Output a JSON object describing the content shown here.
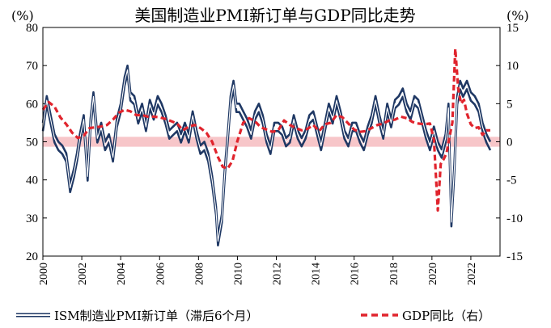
{
  "chart_data": {
    "type": "line",
    "title": "美国制造业PMI新订单与GDP同比走势",
    "left_unit": "(%)",
    "right_unit": "(%)",
    "left_axis": {
      "ylim": [
        20,
        80
      ],
      "ticks": [
        20,
        30,
        40,
        50,
        60,
        70,
        80
      ]
    },
    "right_axis": {
      "ylim": [
        -15,
        15
      ],
      "ticks": [
        -15,
        -10,
        -5,
        0,
        5,
        10,
        15
      ]
    },
    "x_axis": {
      "range": [
        2000,
        2023.5
      ],
      "ticks": [
        "2000",
        "2002",
        "2004",
        "2006",
        "2008",
        "2010",
        "2012",
        "2014",
        "2016",
        "2018",
        "2020",
        "2022"
      ]
    },
    "band": {
      "axis": "left",
      "from": 48.7,
      "to": 51.3,
      "color": "#f7c6c9"
    },
    "colors": {
      "pmi": "#1f3864",
      "gdp": "#e0242d",
      "band": "#f7c6c9"
    },
    "series": [
      {
        "name": "ISM制造业PMI新订单（滞后6个月）",
        "axis": "left",
        "style": "double-line",
        "x": [
          2000.0,
          2000.2,
          2000.4,
          2000.6,
          2000.8,
          2001.0,
          2001.2,
          2001.4,
          2001.6,
          2001.75,
          2001.9,
          2002.1,
          2002.3,
          2002.45,
          2002.6,
          2002.8,
          2003.0,
          2003.2,
          2003.4,
          2003.6,
          2003.8,
          2004.0,
          2004.2,
          2004.35,
          2004.5,
          2004.7,
          2004.9,
          2005.1,
          2005.3,
          2005.5,
          2005.7,
          2005.9,
          2006.1,
          2006.3,
          2006.5,
          2006.7,
          2006.9,
          2007.1,
          2007.3,
          2007.5,
          2007.7,
          2007.9,
          2008.1,
          2008.3,
          2008.5,
          2008.7,
          2008.9,
          2009.0,
          2009.2,
          2009.35,
          2009.5,
          2009.65,
          2009.8,
          2009.95,
          2010.1,
          2010.3,
          2010.5,
          2010.7,
          2010.9,
          2011.1,
          2011.3,
          2011.5,
          2011.7,
          2011.9,
          2012.1,
          2012.3,
          2012.5,
          2012.7,
          2012.9,
          2013.1,
          2013.3,
          2013.5,
          2013.7,
          2013.9,
          2014.1,
          2014.3,
          2014.5,
          2014.7,
          2014.9,
          2015.1,
          2015.3,
          2015.5,
          2015.7,
          2015.9,
          2016.1,
          2016.3,
          2016.5,
          2016.7,
          2016.9,
          2017.1,
          2017.3,
          2017.5,
          2017.7,
          2017.9,
          2018.1,
          2018.3,
          2018.5,
          2018.7,
          2018.9,
          2019.1,
          2019.3,
          2019.5,
          2019.7,
          2019.9,
          2020.1,
          2020.3,
          2020.5,
          2020.7,
          2020.85,
          2021.0,
          2021.15,
          2021.3,
          2021.45,
          2021.6,
          2021.8,
          2022.0,
          2022.2,
          2022.4,
          2022.6,
          2022.8,
          2023.0
        ],
        "values": [
          55,
          62,
          57,
          52,
          50,
          49,
          47,
          39,
          43,
          47,
          52,
          57,
          42,
          56,
          63,
          52,
          55,
          50,
          52,
          47,
          56,
          60,
          67,
          70,
          63,
          62,
          57,
          60,
          55,
          61,
          58,
          62,
          60,
          57,
          53,
          54,
          55,
          52,
          55,
          52,
          58,
          53,
          49,
          50,
          47,
          41,
          33,
          25,
          31,
          43,
          52,
          62,
          66,
          60,
          60,
          58,
          56,
          53,
          58,
          60,
          57,
          52,
          49,
          55,
          55,
          54,
          51,
          52,
          57,
          53,
          51,
          53,
          57,
          58,
          54,
          50,
          55,
          60,
          57,
          62,
          58,
          53,
          51,
          55,
          55,
          52,
          50,
          54,
          57,
          62,
          57,
          53,
          60,
          56,
          61,
          62,
          64,
          60,
          58,
          62,
          61,
          57,
          53,
          50,
          54,
          50,
          48,
          52,
          60,
          30,
          44,
          62,
          66,
          64,
          66,
          63,
          62,
          60,
          55,
          52,
          50
        ],
        "values_note": "lower of the paired strokes is roughly 2 points below"
      },
      {
        "name": "GDP同比（右）",
        "axis": "right",
        "style": "dashed",
        "x": [
          2000.0,
          2000.3,
          2000.6,
          2000.9,
          2001.2,
          2001.5,
          2001.8,
          2002.1,
          2002.4,
          2002.7,
          2003.0,
          2003.3,
          2003.6,
          2003.9,
          2004.2,
          2004.5,
          2004.8,
          2005.1,
          2005.4,
          2005.7,
          2006.0,
          2006.3,
          2006.6,
          2006.9,
          2007.2,
          2007.5,
          2007.8,
          2008.1,
          2008.4,
          2008.7,
          2009.0,
          2009.25,
          2009.5,
          2009.75,
          2010.0,
          2010.3,
          2010.6,
          2010.9,
          2011.2,
          2011.5,
          2011.8,
          2012.1,
          2012.4,
          2012.7,
          2013.0,
          2013.3,
          2013.6,
          2013.9,
          2014.2,
          2014.5,
          2014.8,
          2015.1,
          2015.4,
          2015.7,
          2016.0,
          2016.3,
          2016.6,
          2016.9,
          2017.2,
          2017.5,
          2017.8,
          2018.1,
          2018.4,
          2018.7,
          2019.0,
          2019.3,
          2019.6,
          2019.9,
          2020.1,
          2020.3,
          2020.45,
          2020.6,
          2020.75,
          2020.9,
          2021.05,
          2021.2,
          2021.35,
          2021.5,
          2021.65,
          2021.8,
          2022.0,
          2022.2,
          2022.4,
          2022.6,
          2022.8,
          2023.0
        ],
        "values": [
          4.2,
          5.2,
          4.6,
          3.2,
          2.3,
          1.2,
          0.5,
          0.8,
          1.8,
          1.9,
          2.0,
          2.2,
          2.9,
          3.8,
          4.2,
          4.0,
          3.5,
          3.5,
          3.3,
          3.3,
          3.2,
          3.0,
          2.7,
          2.4,
          1.5,
          2.0,
          2.2,
          1.8,
          1.2,
          0.0,
          -2.0,
          -3.3,
          -3.5,
          -2.5,
          0.1,
          2.5,
          3.1,
          2.7,
          1.9,
          1.6,
          1.3,
          1.5,
          2.8,
          2.2,
          1.8,
          1.5,
          1.7,
          2.2,
          1.4,
          2.3,
          2.5,
          3.5,
          3.2,
          2.4,
          1.6,
          1.3,
          1.4,
          1.8,
          2.2,
          2.4,
          2.8,
          2.9,
          3.3,
          3.1,
          2.6,
          2.4,
          2.3,
          2.4,
          0.3,
          -9.0,
          -2.9,
          -2.3,
          -1.5,
          0.6,
          2.5,
          12.2,
          7.0,
          5.0,
          5.5,
          3.7,
          2.3,
          1.8,
          1.9,
          0.9,
          1.5,
          1.5
        ]
      }
    ],
    "legend": [
      {
        "label": "ISM制造业PMI新订单（滞后6个月）"
      },
      {
        "label": "GDP同比（右）"
      }
    ],
    "legend_position": "bottom"
  }
}
